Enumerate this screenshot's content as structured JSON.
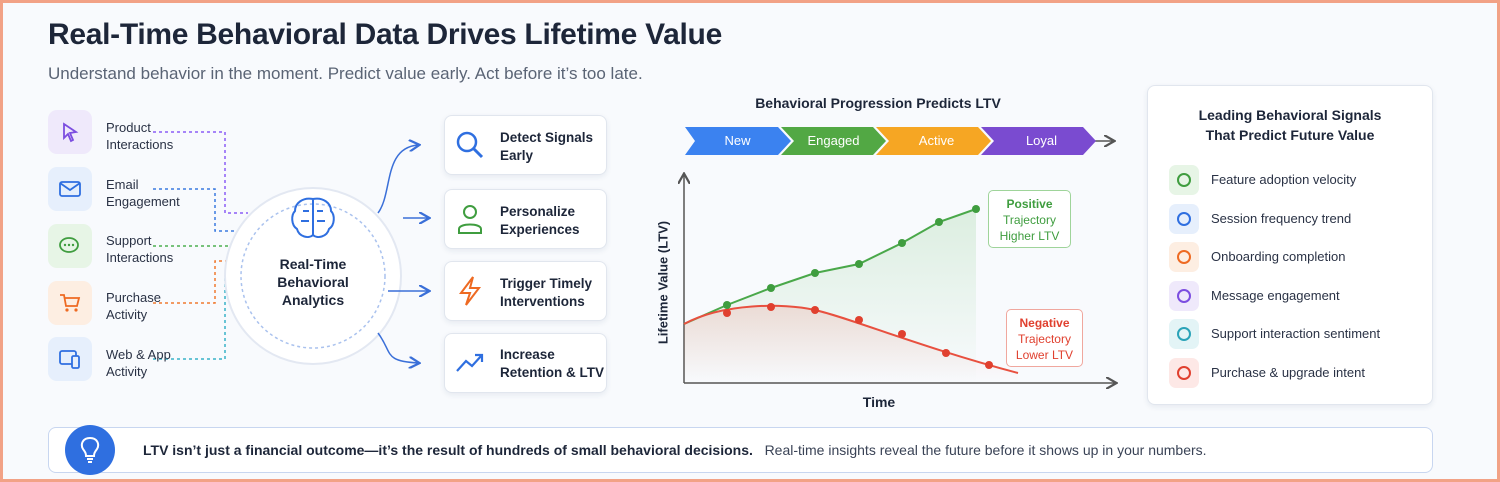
{
  "header": {
    "title": "Real-Time Behavioral Data Drives Lifetime Value",
    "subtitle": "Understand behavior in the moment. Predict value early. Act before it’s too late."
  },
  "sources": [
    "Product Interactions",
    "Email Engagement",
    "Support Interactions",
    "Purchase Activity",
    "Web & App Activity"
  ],
  "hub": "Real-Time Behavioral Analytics",
  "actions": [
    "Detect Signals Early",
    "Personalize Experiences",
    "Trigger Timely Interventions",
    "Increase Retention & LTV"
  ],
  "progression": {
    "title": "Behavioral Progression Predicts LTV",
    "stages": [
      "New",
      "Engaged",
      "Active",
      "Loyal"
    ],
    "y_axis": "Lifetime Value (LTV)",
    "x_axis": "Time",
    "positive": [
      "Positive",
      "Trajectory",
      "Higher LTV"
    ],
    "negative": [
      "Negative",
      "Trajectory",
      "Lower LTV"
    ]
  },
  "signals": {
    "title": [
      "Leading Behavioral Signals",
      "That Predict Future Value"
    ],
    "items": [
      "Feature adoption velocity",
      "Session frequency trend",
      "Onboarding completion",
      "Message engagement",
      "Support interaction sentiment",
      "Purchase & upgrade intent"
    ]
  },
  "footer": {
    "bold": "LTV isn’t just a financial outcome—it’s the result of hundreds of small behavioral decisions.",
    "regular": "Real-time insights reveal the future before it shows up in your numbers."
  }
}
